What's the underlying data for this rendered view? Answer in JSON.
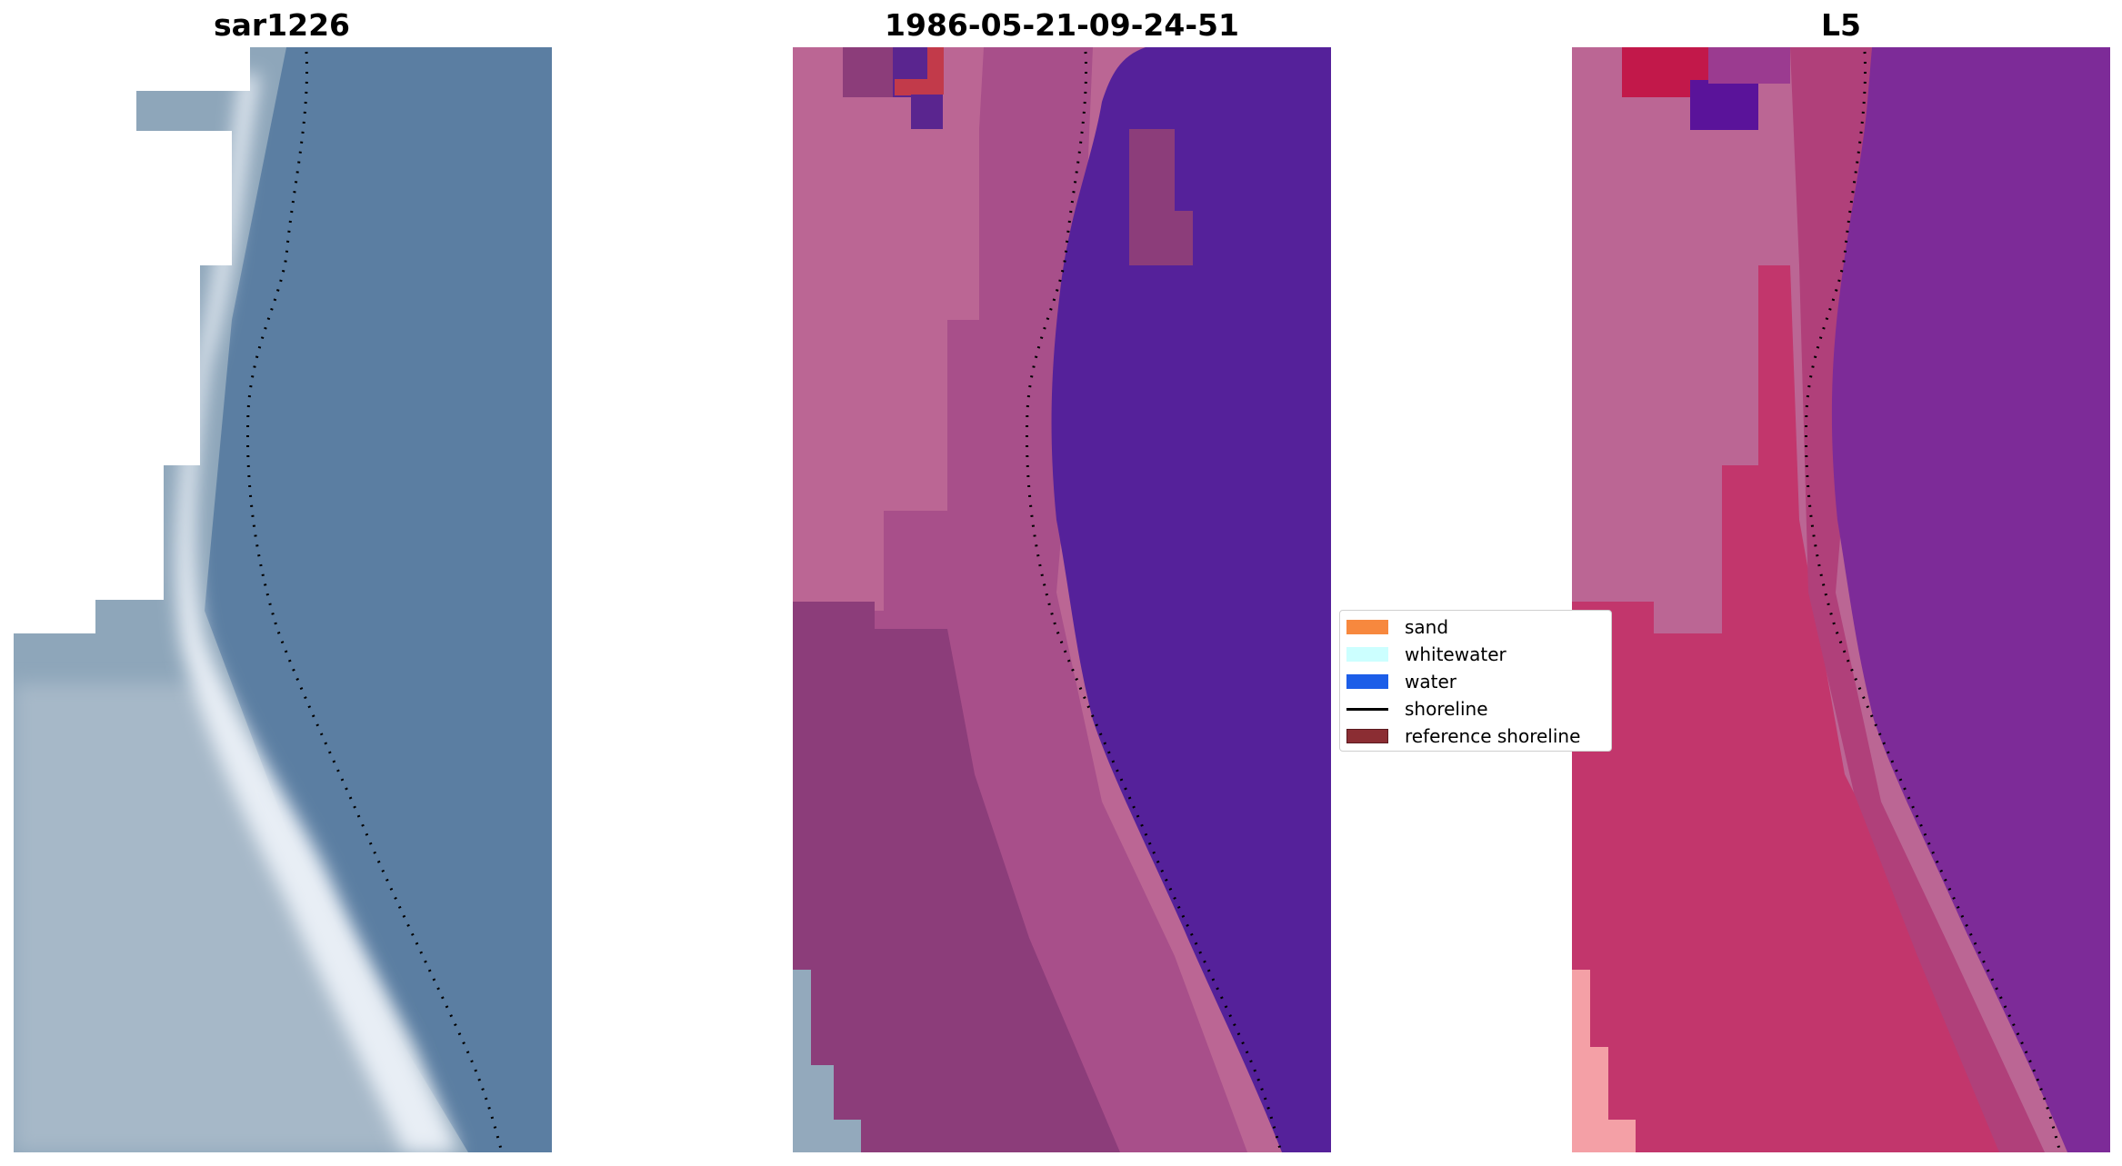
{
  "panels": [
    {
      "title": "sar1226",
      "image": "RGB satellite view of coastline with white sand strip and blue water"
    },
    {
      "title": "1986-05-21-09-24-51",
      "image": "classified image: pink land, dark magenta transition, purple water"
    },
    {
      "title": "L5",
      "image": "MNDWI-style index image with pink-red land and purple water"
    }
  ],
  "legend": {
    "items": [
      {
        "label": "sand",
        "color": "#f7883e",
        "type": "patch"
      },
      {
        "label": "whitewater",
        "color": "#ccffff",
        "type": "patch"
      },
      {
        "label": "water",
        "color": "#1c5ee8",
        "type": "patch"
      },
      {
        "label": "shoreline",
        "color": "#000000",
        "type": "line"
      },
      {
        "label": "reference shoreline",
        "color": "#8b2d33",
        "type": "patch"
      }
    ]
  },
  "colors": {
    "background": "#ffffff",
    "rgb_water": "#5b7ea2",
    "class_land": "#bb6694",
    "class_mid": "#8c3d7a",
    "class_water": "#55219a",
    "index_land": "#c2366c",
    "index_water": "#7d2b98"
  }
}
